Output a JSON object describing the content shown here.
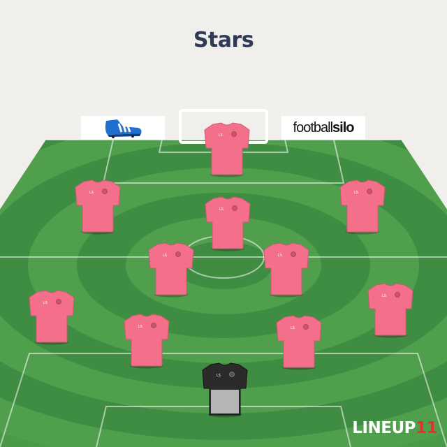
{
  "team": {
    "name": "Stars"
  },
  "sponsors": {
    "left": {
      "icon": "football-boot-icon"
    },
    "right": {
      "text_light": "football",
      "text_bold": "silo"
    }
  },
  "colors": {
    "shirt": "#f4708a",
    "shirt_dark": "#e0607a",
    "keeper_body": "#2b2b2b",
    "keeper_panel": "#b5b5b5",
    "pitch_dark": "#3e8b43",
    "pitch_light": "#55a34f",
    "background": "#f1efec",
    "title": "#2f3a57",
    "brand_accent": "#ee2d2d"
  },
  "players": [
    {
      "id": "p1",
      "role": "outfield"
    },
    {
      "id": "p2",
      "role": "outfield"
    },
    {
      "id": "p3",
      "role": "outfield"
    },
    {
      "id": "p4",
      "role": "outfield"
    },
    {
      "id": "p5",
      "role": "outfield"
    },
    {
      "id": "p6",
      "role": "outfield"
    },
    {
      "id": "p7",
      "role": "outfield"
    },
    {
      "id": "p8",
      "role": "outfield"
    },
    {
      "id": "p9",
      "role": "outfield"
    },
    {
      "id": "p10",
      "role": "outfield"
    },
    {
      "id": "gk",
      "role": "goalkeeper"
    }
  ],
  "brand": {
    "text": "LINEUP",
    "number": "11"
  }
}
